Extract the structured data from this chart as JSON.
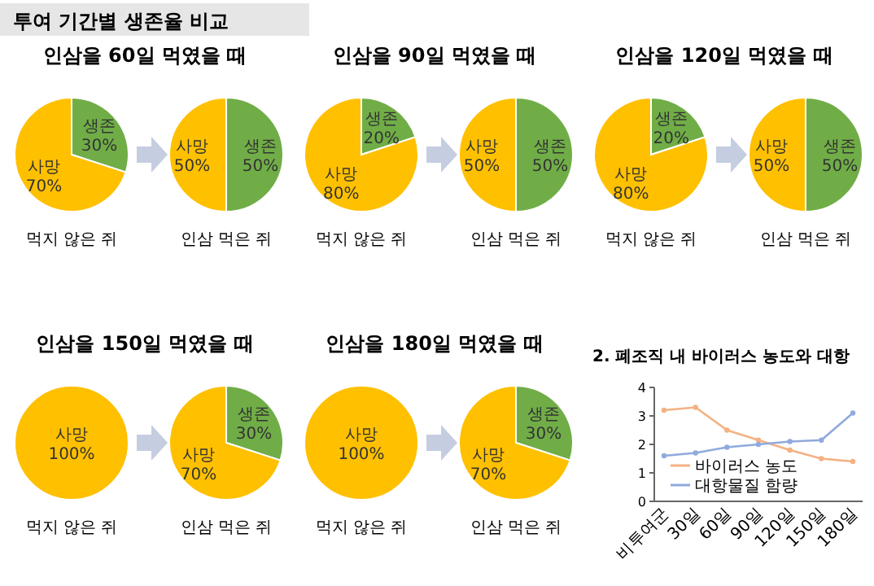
{
  "chart_data": [
    {
      "type": "other",
      "title": "투여 기간별 생존율 비교"
    },
    {
      "type": "pie",
      "title": "인삼을 60일 먹였을 때",
      "xlabel": "먹지 않은 쥐",
      "categories": [
        "생존",
        "사망"
      ],
      "values": [
        30,
        70
      ],
      "value_labels": [
        "30%",
        "70%"
      ],
      "colors": [
        "#70ad47",
        "#ffc000"
      ]
    },
    {
      "type": "pie",
      "xlabel": "인삼 먹은 쥐",
      "categories": [
        "생존",
        "사망"
      ],
      "values": [
        50,
        50
      ],
      "value_labels": [
        "50%",
        "50%"
      ],
      "colors": [
        "#70ad47",
        "#ffc000"
      ]
    },
    {
      "type": "pie",
      "title": "인삼을 90일 먹였을 때",
      "xlabel": "먹지 않은 쥐",
      "categories": [
        "생존",
        "사망"
      ],
      "values": [
        20,
        80
      ],
      "value_labels": [
        "20%",
        "80%"
      ],
      "colors": [
        "#70ad47",
        "#ffc000"
      ]
    },
    {
      "type": "pie",
      "xlabel": "인삼 먹은 쥐",
      "categories": [
        "생존",
        "사망"
      ],
      "values": [
        50,
        50
      ],
      "value_labels": [
        "50%",
        "50%"
      ],
      "colors": [
        "#70ad47",
        "#ffc000"
      ]
    },
    {
      "type": "pie",
      "title": "인삼을 120일 먹였을 때",
      "xlabel": "먹지 않은 쥐",
      "categories": [
        "생존",
        "사망"
      ],
      "values": [
        20,
        80
      ],
      "value_labels": [
        "20%",
        "80%"
      ],
      "colors": [
        "#70ad47",
        "#ffc000"
      ]
    },
    {
      "type": "pie",
      "xlabel": "인삼 먹은 쥐",
      "categories": [
        "생존",
        "사망"
      ],
      "values": [
        50,
        50
      ],
      "value_labels": [
        "50%",
        "50%"
      ],
      "colors": [
        "#70ad47",
        "#ffc000"
      ]
    },
    {
      "type": "pie",
      "title": "인삼을 150일 먹였을 때",
      "xlabel": "먹지 않은 쥐",
      "categories": [
        "사망"
      ],
      "values": [
        100
      ],
      "value_labels": [
        "100%"
      ],
      "colors": [
        "#ffc000"
      ]
    },
    {
      "type": "pie",
      "xlabel": "인삼 먹은 쥐",
      "categories": [
        "생존",
        "사망"
      ],
      "values": [
        30,
        70
      ],
      "value_labels": [
        "30%",
        "70%"
      ],
      "colors": [
        "#70ad47",
        "#ffc000"
      ]
    },
    {
      "type": "pie",
      "title": "인삼을 180일 먹였을 때",
      "xlabel": "먹지 않은 쥐",
      "categories": [
        "사망"
      ],
      "values": [
        100
      ],
      "value_labels": [
        "100%"
      ],
      "colors": [
        "#ffc000"
      ]
    },
    {
      "type": "pie",
      "xlabel": "인삼 먹은 쥐",
      "categories": [
        "생존",
        "사망"
      ],
      "values": [
        30,
        70
      ],
      "value_labels": [
        "30%",
        "70%"
      ],
      "colors": [
        "#70ad47",
        "#ffc000"
      ]
    },
    {
      "type": "line",
      "title": "2. 폐조직 내 바이러스 농도와 대항",
      "categories": [
        "비투여군",
        "30일",
        "60일",
        "90일",
        "120일",
        "150일",
        "180일"
      ],
      "ylim": [
        0,
        4
      ],
      "yticks": [
        0,
        1,
        2,
        3,
        4
      ],
      "legend": "bottom",
      "marker": "circle",
      "series": [
        {
          "name": "바이러스 농도",
          "color": "#f4b183",
          "values": [
            3.2,
            3.3,
            2.5,
            2.15,
            1.8,
            1.5,
            1.4
          ]
        },
        {
          "name": "대항물질 함량",
          "color": "#8faadc",
          "values": [
            1.6,
            1.7,
            1.9,
            2.0,
            2.1,
            2.15,
            3.1
          ]
        }
      ]
    }
  ]
}
